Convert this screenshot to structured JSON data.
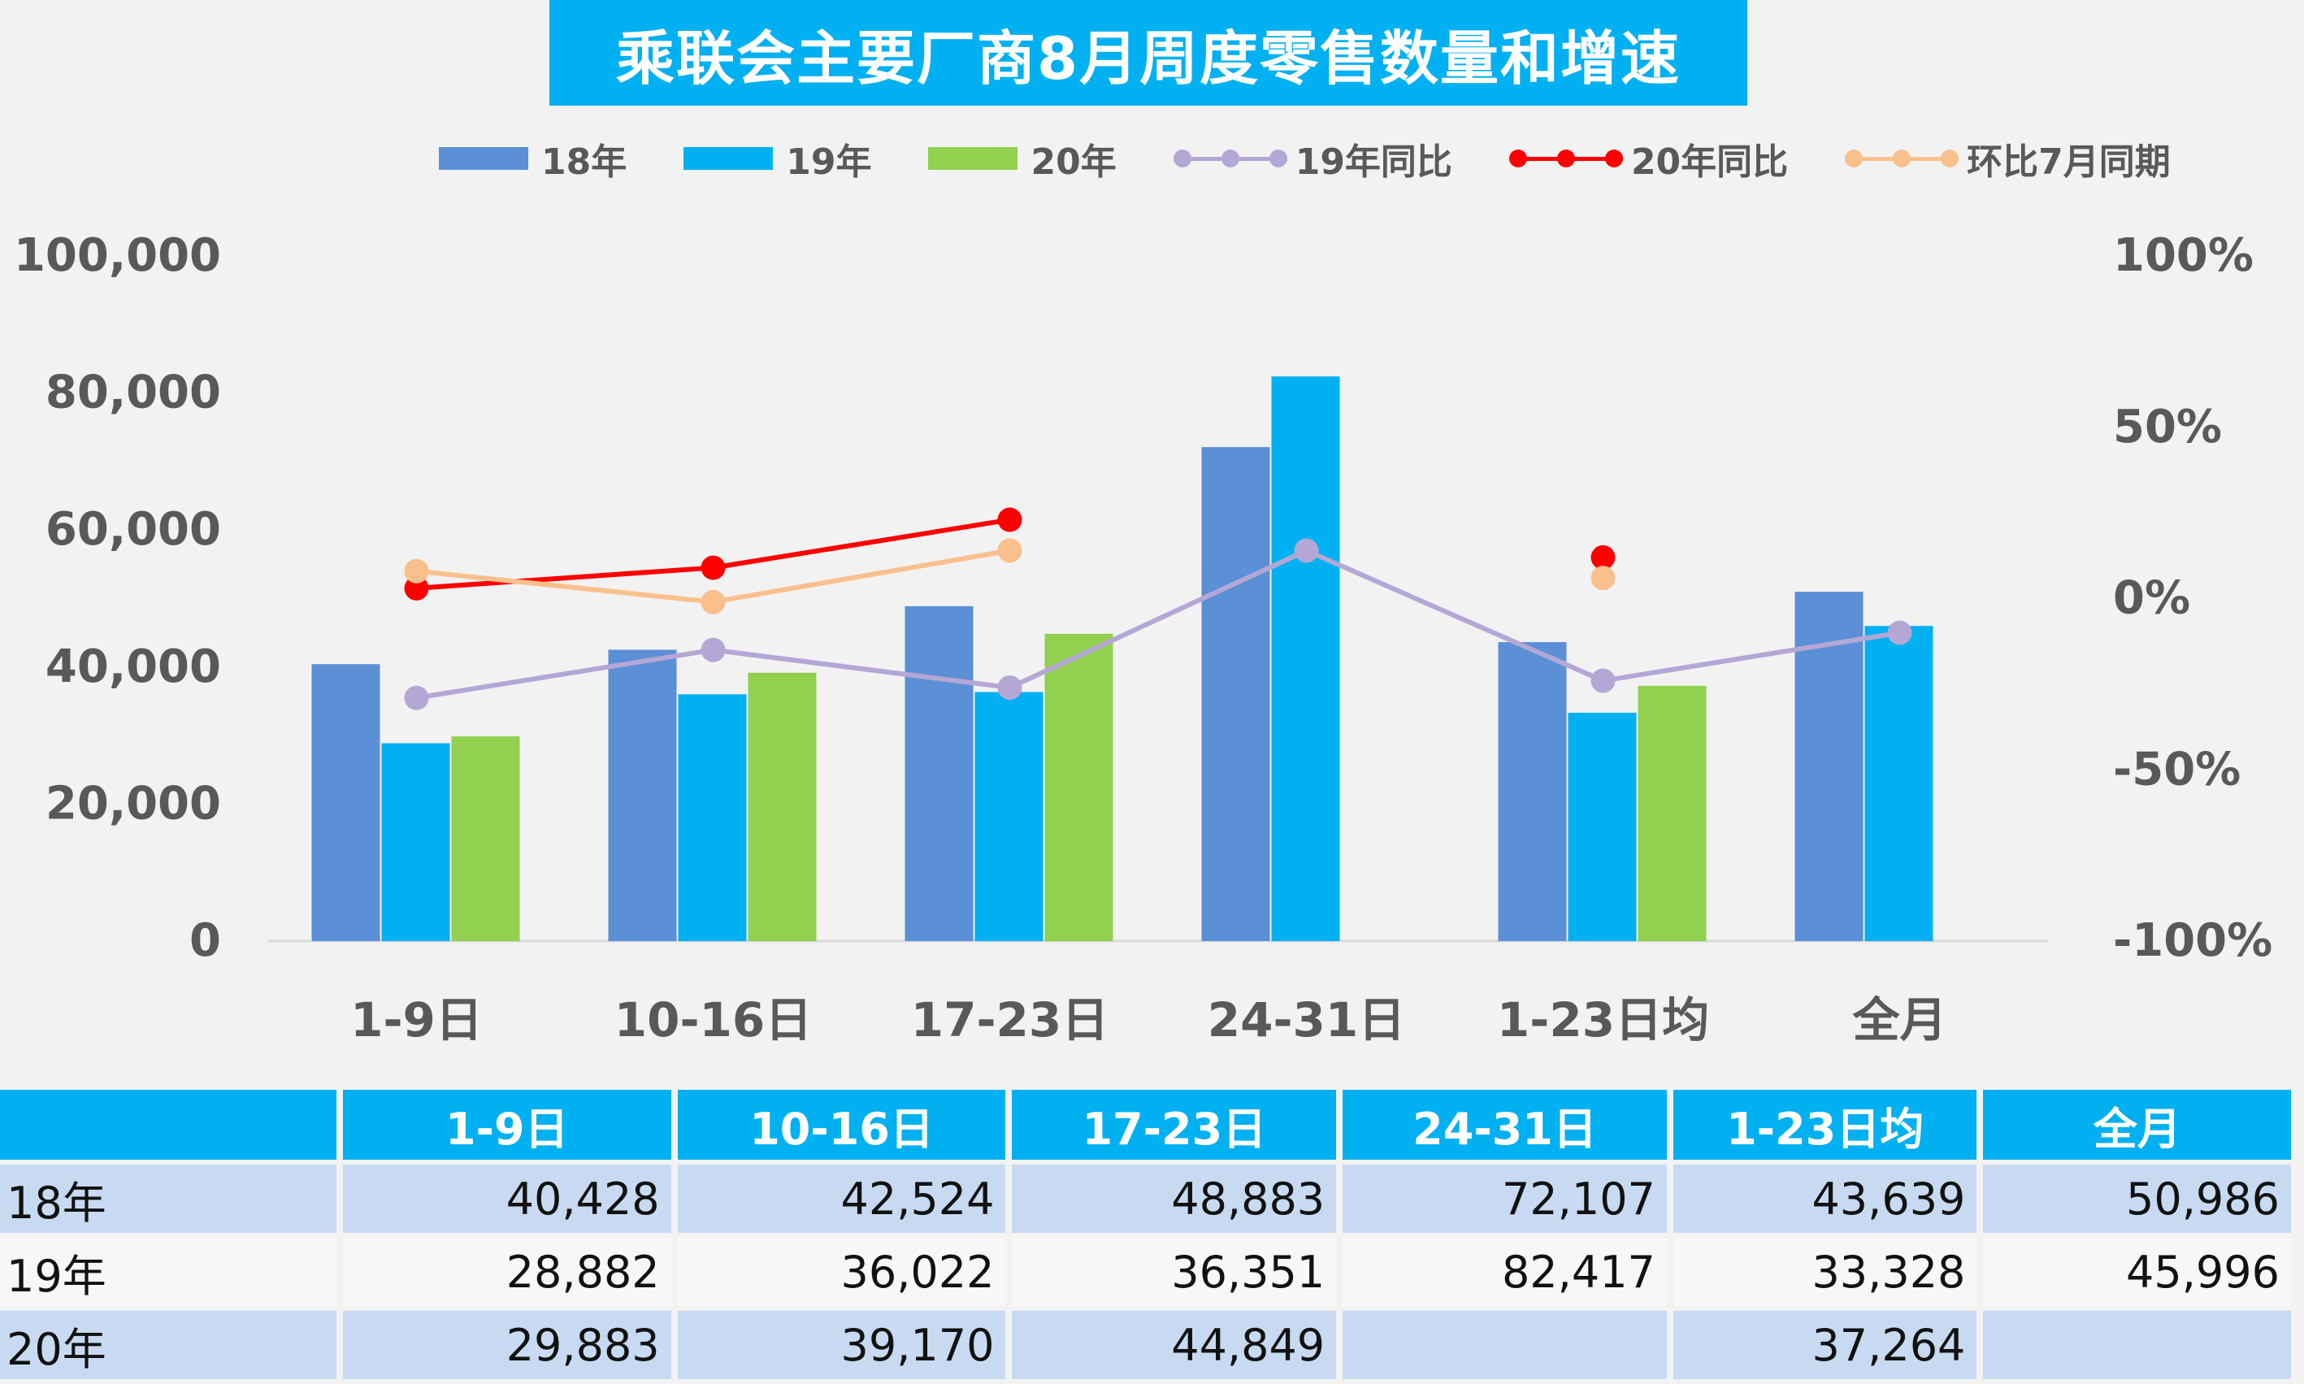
{
  "chart_data": {
    "type": "bar",
    "title": "乘联会主要厂商8月周度零售数量和增速",
    "categories": [
      "1-9日",
      "10-16日",
      "17-23日",
      "24-31日",
      "1-23日均",
      "全月"
    ],
    "series": [
      {
        "name": "18年",
        "type": "bar",
        "axis": "left",
        "color": "#5b8fd6",
        "values": [
          40428,
          42524,
          48883,
          72107,
          43639,
          50986
        ]
      },
      {
        "name": "19年",
        "type": "bar",
        "axis": "left",
        "color": "#00b0f0",
        "values": [
          28882,
          36022,
          36351,
          82417,
          33328,
          45996
        ]
      },
      {
        "name": "20年",
        "type": "bar",
        "axis": "left",
        "color": "#92d050",
        "values": [
          29883,
          39170,
          44849,
          null,
          37264,
          null
        ]
      },
      {
        "name": "19年同比",
        "type": "line",
        "axis": "right",
        "color": "#b4a7d6",
        "values": [
          -29,
          -15,
          -26,
          14,
          -24,
          -10
        ]
      },
      {
        "name": "20年同比",
        "type": "line",
        "axis": "right",
        "color": "#ff0000",
        "values": [
          3,
          9,
          23,
          null,
          12,
          null
        ]
      },
      {
        "name": "环比7月同期",
        "type": "line",
        "axis": "right",
        "color": "#f9c08c",
        "values": [
          8,
          -1,
          14,
          null,
          6,
          null
        ]
      }
    ],
    "y_left": {
      "min": 0,
      "max": 100000,
      "ticks": [
        "0",
        "20,000",
        "40,000",
        "60,000",
        "80,000",
        "100,000"
      ]
    },
    "y_right": {
      "min": -100,
      "max": 100,
      "ticks": [
        "-100%",
        "-50%",
        "0%",
        "50%",
        "100%"
      ]
    },
    "legend_position": "top",
    "grid": false
  },
  "table": {
    "headers": [
      "",
      "1-9日",
      "10-16日",
      "17-23日",
      "24-31日",
      "1-23日均",
      "全月"
    ],
    "rows": [
      {
        "label": "18年",
        "cells": [
          "40,428",
          "42,524",
          "48,883",
          "72,107",
          "43,639",
          "50,986"
        ]
      },
      {
        "label": "19年",
        "cells": [
          "28,882",
          "36,022",
          "36,351",
          "82,417",
          "33,328",
          "45,996"
        ]
      },
      {
        "label": "20年",
        "cells": [
          "29,883",
          "39,170",
          "44,849",
          "",
          "37,264",
          ""
        ]
      }
    ]
  }
}
